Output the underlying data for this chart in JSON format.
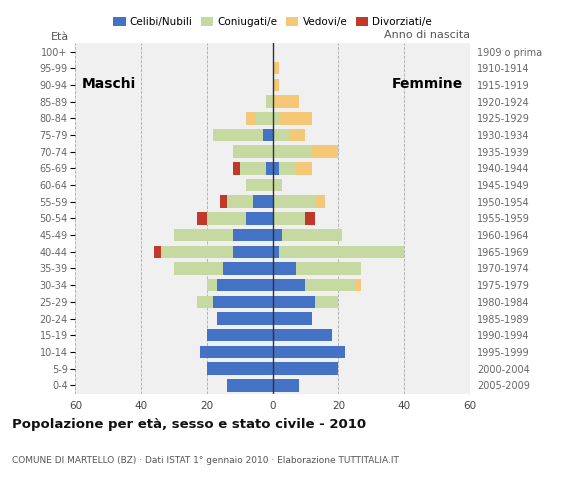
{
  "age_groups": [
    "0-4",
    "5-9",
    "10-14",
    "15-19",
    "20-24",
    "25-29",
    "30-34",
    "35-39",
    "40-44",
    "45-49",
    "50-54",
    "55-59",
    "60-64",
    "65-69",
    "70-74",
    "75-79",
    "80-84",
    "85-89",
    "90-94",
    "95-99",
    "100+"
  ],
  "birth_years": [
    "2005-2009",
    "2000-2004",
    "1995-1999",
    "1990-1994",
    "1985-1989",
    "1980-1984",
    "1975-1979",
    "1970-1974",
    "1965-1969",
    "1960-1964",
    "1955-1959",
    "1950-1954",
    "1945-1949",
    "1940-1944",
    "1935-1939",
    "1930-1934",
    "1925-1929",
    "1920-1924",
    "1915-1919",
    "1910-1914",
    "1909 o prima"
  ],
  "male": {
    "celibi": [
      14,
      20,
      22,
      20,
      17,
      18,
      17,
      15,
      12,
      12,
      8,
      6,
      0,
      2,
      0,
      3,
      0,
      0,
      0,
      0,
      0
    ],
    "coniugati": [
      0,
      0,
      0,
      0,
      0,
      5,
      3,
      15,
      22,
      18,
      12,
      8,
      8,
      8,
      12,
      15,
      5,
      2,
      0,
      0,
      0
    ],
    "vedovi": [
      0,
      0,
      0,
      0,
      0,
      0,
      0,
      0,
      0,
      0,
      0,
      0,
      0,
      0,
      0,
      0,
      3,
      0,
      0,
      0,
      0
    ],
    "divorziati": [
      0,
      0,
      0,
      0,
      0,
      0,
      0,
      0,
      2,
      0,
      3,
      2,
      0,
      2,
      0,
      0,
      0,
      0,
      0,
      0,
      0
    ]
  },
  "female": {
    "nubili": [
      8,
      20,
      22,
      18,
      12,
      13,
      10,
      7,
      2,
      3,
      0,
      0,
      0,
      2,
      0,
      0,
      0,
      0,
      0,
      0,
      0
    ],
    "coniugate": [
      0,
      0,
      0,
      0,
      0,
      7,
      15,
      20,
      38,
      18,
      10,
      13,
      3,
      5,
      12,
      5,
      2,
      0,
      0,
      0,
      0
    ],
    "vedove": [
      0,
      0,
      0,
      0,
      0,
      0,
      2,
      0,
      0,
      0,
      0,
      3,
      0,
      5,
      8,
      5,
      10,
      8,
      2,
      2,
      0
    ],
    "divorziate": [
      0,
      0,
      0,
      0,
      0,
      0,
      0,
      0,
      0,
      0,
      3,
      0,
      0,
      0,
      0,
      0,
      0,
      0,
      0,
      0,
      0
    ]
  },
  "colors": {
    "celibi": "#4472c4",
    "coniugati": "#c5d9a0",
    "vedovi": "#f5c878",
    "divorziati": "#c0392b"
  },
  "xlim": 60,
  "title": "Popolazione per età, sesso e stato civile - 2010",
  "subtitle": "COMUNE DI MARTELLO (BZ) · Dati ISTAT 1° gennaio 2010 · Elaborazione TUTTITALIA.IT",
  "label_maschi": "Maschi",
  "label_femmine": "Femmine",
  "label_eta": "Età",
  "label_anno": "Anno di nascita",
  "legend": [
    "Celibi/Nubili",
    "Coniugati/e",
    "Vedovi/e",
    "Divorziati/e"
  ],
  "bg_color": "#ffffff",
  "plot_bg_color": "#f0f0f0"
}
